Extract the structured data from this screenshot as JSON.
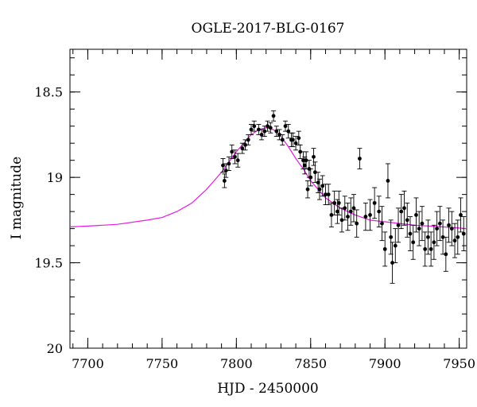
{
  "chart_data": {
    "type": "scatter",
    "title": "OGLE-2017-BLG-0167",
    "xlabel": "HJD - 2450000",
    "ylabel": "I magnitude",
    "xlim": [
      7688,
      7955
    ],
    "ylim": [
      20,
      18.25
    ],
    "y_inverted": true,
    "x_major_ticks": [
      7700,
      7750,
      7800,
      7850,
      7900,
      7950
    ],
    "x_tick_labels": [
      "7700",
      "7750",
      "7800",
      "7850",
      "7900",
      "7950"
    ],
    "x_minor_step": 10,
    "y_major_ticks": [
      18.5,
      19,
      19.5,
      20
    ],
    "y_tick_labels": [
      "18.5",
      "19",
      "19.5",
      "20"
    ],
    "y_minor_step": 0.1,
    "grid": false,
    "colors": {
      "data": "#000000",
      "model": "#e619e6"
    },
    "series": [
      {
        "kind": "points-with-errorbars",
        "x": [
          7791,
          7792,
          7793,
          7795,
          7797,
          7799,
          7801,
          7804,
          7806,
          7808,
          7810,
          7812,
          7815,
          7817,
          7819,
          7821,
          7823,
          7825,
          7827,
          7829,
          7831,
          7833,
          7835,
          7837,
          7838,
          7840,
          7842,
          7843,
          7845,
          7846,
          7847,
          7848,
          7849,
          7850,
          7852,
          7853,
          7855,
          7856,
          7858,
          7860,
          7862,
          7864,
          7866,
          7868,
          7869,
          7871,
          7873,
          7875,
          7877,
          7879,
          7881,
          7883,
          7887,
          7890,
          7893,
          7896,
          7898,
          7900,
          7902,
          7904,
          7905,
          7907,
          7909,
          7911,
          7913,
          7915,
          7917,
          7919,
          7921,
          7923,
          7925,
          7927,
          7929,
          7931,
          7933,
          7935,
          7937,
          7939,
          7941,
          7943,
          7945,
          7947,
          7949,
          7951,
          7953
        ],
        "y": [
          18.93,
          19.02,
          18.96,
          18.92,
          18.85,
          18.88,
          18.9,
          18.83,
          18.81,
          18.78,
          18.72,
          18.7,
          18.72,
          18.75,
          18.73,
          18.7,
          18.71,
          18.64,
          18.73,
          18.75,
          18.78,
          18.7,
          18.73,
          18.78,
          18.78,
          18.8,
          18.77,
          18.85,
          18.9,
          18.93,
          18.9,
          19.07,
          18.95,
          19.0,
          18.88,
          18.97,
          19.03,
          19.07,
          19.05,
          19.1,
          19.1,
          19.22,
          19.15,
          19.2,
          19.15,
          19.25,
          19.18,
          19.23,
          19.2,
          19.18,
          19.27,
          18.89,
          19.23,
          19.22,
          19.15,
          19.2,
          19.27,
          19.42,
          19.02,
          19.35,
          19.5,
          19.4,
          19.28,
          19.2,
          19.18,
          19.25,
          19.33,
          19.38,
          19.22,
          19.3,
          19.27,
          19.42,
          19.35,
          19.42,
          19.38,
          19.3,
          19.27,
          19.35,
          19.45,
          19.28,
          19.3,
          19.37,
          19.35,
          19.22,
          19.33
        ],
        "err": [
          0.04,
          0.04,
          0.04,
          0.04,
          0.04,
          0.04,
          0.04,
          0.03,
          0.03,
          0.03,
          0.03,
          0.03,
          0.03,
          0.03,
          0.03,
          0.03,
          0.03,
          0.03,
          0.03,
          0.03,
          0.03,
          0.03,
          0.04,
          0.04,
          0.04,
          0.04,
          0.04,
          0.04,
          0.05,
          0.05,
          0.05,
          0.05,
          0.05,
          0.05,
          0.05,
          0.06,
          0.06,
          0.06,
          0.06,
          0.06,
          0.06,
          0.07,
          0.07,
          0.07,
          0.07,
          0.07,
          0.07,
          0.08,
          0.08,
          0.08,
          0.08,
          0.06,
          0.08,
          0.09,
          0.09,
          0.09,
          0.1,
          0.1,
          0.1,
          0.1,
          0.12,
          0.1,
          0.1,
          0.1,
          0.1,
          0.1,
          0.1,
          0.1,
          0.1,
          0.1,
          0.1,
          0.1,
          0.1,
          0.1,
          0.1,
          0.1,
          0.1,
          0.1,
          0.1,
          0.1,
          0.1,
          0.1,
          0.1,
          0.1,
          0.1
        ]
      },
      {
        "kind": "model-curve",
        "x": [
          7688,
          7700,
          7720,
          7740,
          7750,
          7760,
          7770,
          7775,
          7780,
          7785,
          7790,
          7795,
          7800,
          7805,
          7810,
          7815,
          7820,
          7825,
          7830,
          7835,
          7840,
          7845,
          7850,
          7855,
          7860,
          7865,
          7870,
          7880,
          7890,
          7900,
          7920,
          7940,
          7955
        ],
        "y": [
          19.29,
          19.285,
          19.275,
          19.25,
          19.235,
          19.2,
          19.15,
          19.11,
          19.07,
          19.02,
          18.97,
          18.91,
          18.85,
          18.8,
          18.75,
          18.72,
          18.71,
          18.72,
          18.76,
          18.82,
          18.89,
          18.95,
          19.02,
          19.07,
          19.12,
          19.15,
          19.18,
          19.22,
          19.25,
          19.26,
          19.28,
          19.29,
          19.3
        ]
      }
    ]
  }
}
